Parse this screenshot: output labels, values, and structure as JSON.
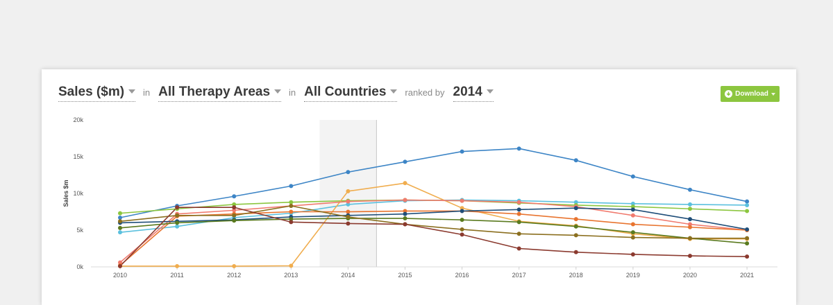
{
  "controls": {
    "metric": "Sales ($m)",
    "in1": "in",
    "therapy": "All Therapy Areas",
    "in2": "in",
    "countries": "All Countries",
    "ranked_by": "ranked by",
    "year": "2014",
    "download": "Download"
  },
  "colors": {
    "background": "#f0f0f0",
    "download_button": "#8cc63f",
    "highlight_band": "#f3f3f3"
  },
  "chart_data": {
    "type": "line",
    "ylabel": "Sales $m",
    "xlabel": "",
    "title": "",
    "ylim": [
      0,
      20000
    ],
    "y_ticks": [
      {
        "value": 0,
        "label": "0k"
      },
      {
        "value": 5000,
        "label": "5k"
      },
      {
        "value": 10000,
        "label": "10k"
      },
      {
        "value": 15000,
        "label": "15k"
      },
      {
        "value": 20000,
        "label": "20k"
      }
    ],
    "x": [
      "2010",
      "2011",
      "2012",
      "2013",
      "2014",
      "2015",
      "2016",
      "2017",
      "2018",
      "2019",
      "2020",
      "2021"
    ],
    "highlight": "2014",
    "series": [
      {
        "color": "#3d85c6",
        "values": [
          6700,
          8300,
          9600,
          11000,
          12900,
          14300,
          15700,
          16100,
          14500,
          12300,
          10500,
          8900
        ]
      },
      {
        "color": "#5bc0de",
        "values": [
          4700,
          5500,
          6700,
          7300,
          8500,
          9000,
          9100,
          9000,
          8800,
          8600,
          8500,
          8400
        ]
      },
      {
        "color": "#8cc63f",
        "values": [
          7300,
          7900,
          8500,
          8800,
          9000,
          9100,
          9000,
          8700,
          8400,
          8200,
          7900,
          7600
        ]
      },
      {
        "color": "#f0ad4e",
        "values": [
          100,
          100,
          100,
          150,
          10300,
          11400,
          8000,
          6200,
          5600,
          4500,
          3800,
          3800
        ]
      },
      {
        "color": "#f07a6e",
        "values": [
          600,
          7200,
          7700,
          8300,
          8900,
          9100,
          9000,
          8800,
          8200,
          7000,
          5800,
          5000
        ]
      },
      {
        "color": "#e8742f",
        "values": [
          200,
          6900,
          7200,
          7500,
          7500,
          7600,
          7600,
          7200,
          6500,
          5800,
          5400,
          5000
        ]
      },
      {
        "color": "#1f4e79",
        "values": [
          6000,
          6200,
          6400,
          6800,
          7000,
          7200,
          7600,
          7800,
          8000,
          7800,
          6500,
          5100
        ]
      },
      {
        "color": "#5a7a1f",
        "values": [
          5300,
          6000,
          6300,
          6500,
          6600,
          6600,
          6400,
          6100,
          5500,
          4700,
          3900,
          3200
        ]
      },
      {
        "color": "#8b6f1f",
        "values": [
          6200,
          7000,
          7000,
          8300,
          6800,
          5800,
          5100,
          4500,
          4300,
          4000,
          3900,
          3900
        ]
      },
      {
        "color": "#8b3a2f",
        "values": [
          100,
          8100,
          8100,
          6100,
          5900,
          5800,
          4400,
          2500,
          2000,
          1700,
          1500,
          1400
        ]
      }
    ]
  }
}
